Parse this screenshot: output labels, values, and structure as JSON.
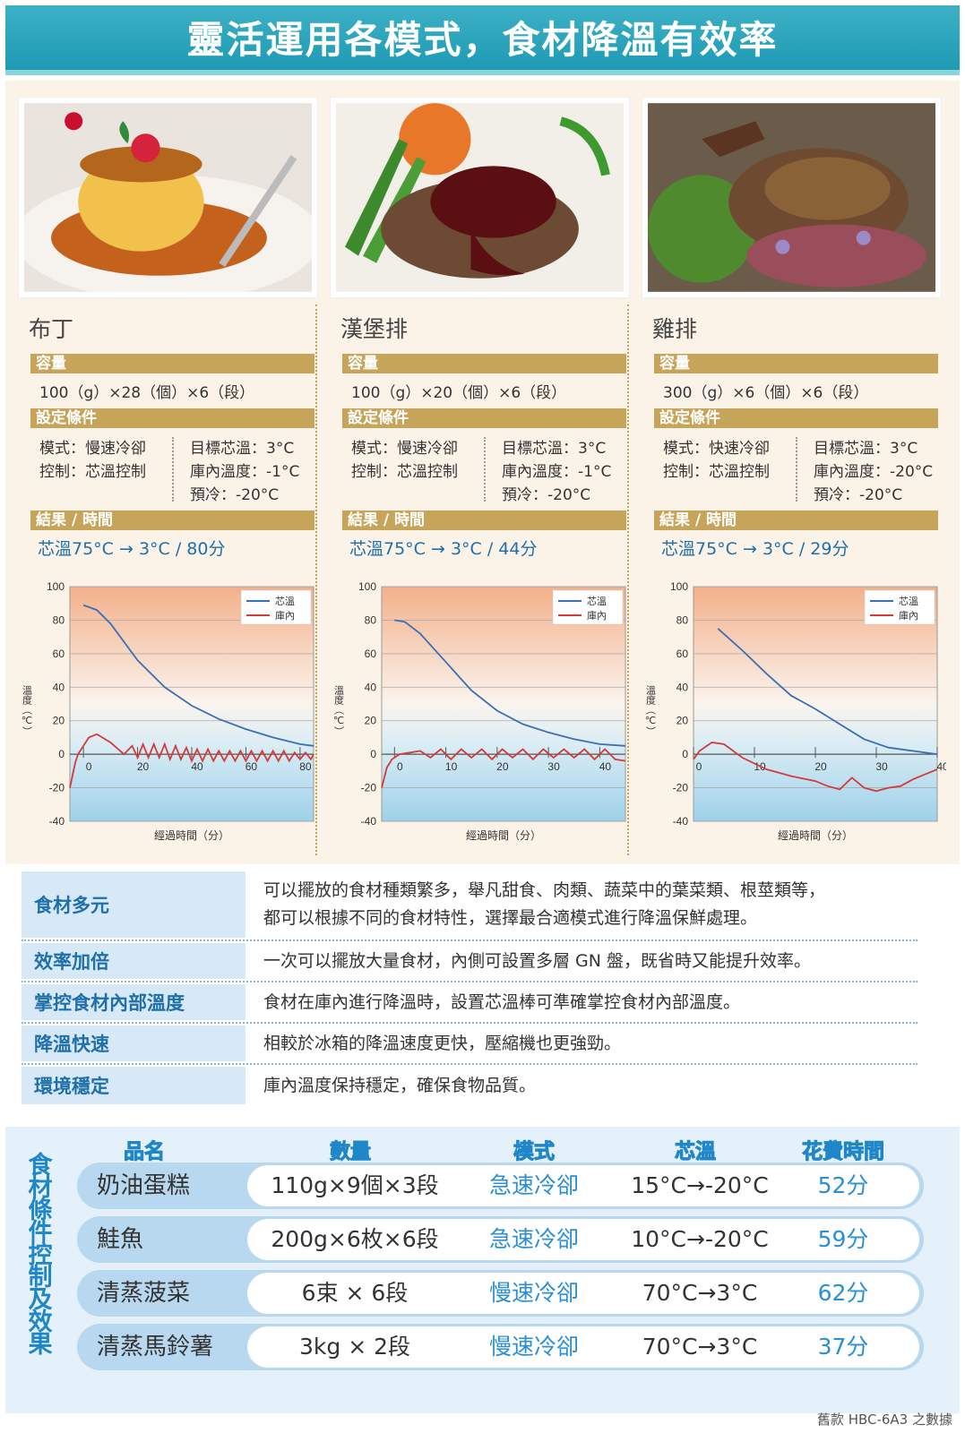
{
  "title": "靈活運用各模式，食材降溫有效率",
  "labels": {
    "capacity": "容量",
    "conditions": "設定條件",
    "result": "結果 / 時間",
    "y_axis": "溫度（℃）",
    "x_axis": "經過時間（分）",
    "legend_core": "芯溫",
    "legend_inside": "庫內"
  },
  "foods": [
    {
      "name": "布丁",
      "capacity": "100（g）×28（個）×6（段）",
      "mode": "模式：慢速冷卻",
      "control": "控制：芯溫控制",
      "target": "目標芯溫：3°C",
      "inside_temp": "庫內溫度：-1°C",
      "precool": "預冷：-20°C",
      "result": "芯溫75°C → 3°C / 80分"
    },
    {
      "name": "漢堡排",
      "capacity": "100（g）×20（個）×6（段）",
      "mode": "模式：慢速冷卻",
      "control": "控制：芯溫控制",
      "target": "目標芯溫：3°C",
      "inside_temp": "庫內溫度：-1°C",
      "precool": "預冷：-20°C",
      "result": "芯溫75°C → 3°C / 44分"
    },
    {
      "name": "雞排",
      "capacity": "300（g）×6（個）×6（段）",
      "mode": "模式：快速冷卻",
      "control": "控制：芯溫控制",
      "target": "目標芯溫：3°C",
      "inside_temp": "庫內溫度：-20°C",
      "precool": "預冷：-20°C",
      "result": "芯溫75°C → 3°C / 29分"
    }
  ],
  "chart_data": [
    {
      "type": "line",
      "xlabel": "經過時間（分）",
      "ylabel": "溫度（℃）",
      "ylim": [
        -40,
        100
      ],
      "xlim": [
        -5,
        85
      ],
      "x_ticks": [
        "0",
        "20",
        "40",
        "60",
        "80"
      ],
      "y_ticks": [
        "100",
        "80",
        "60",
        "40",
        "20",
        "0",
        "-20",
        "-40"
      ],
      "legend_position": "top-right",
      "series": [
        {
          "name": "芯溫",
          "color": "#3a6fb5",
          "x": [
            0,
            5,
            10,
            20,
            30,
            40,
            50,
            60,
            70,
            80,
            85
          ],
          "y": [
            89,
            86,
            78,
            56,
            40,
            29,
            21,
            15,
            10,
            6,
            5
          ]
        },
        {
          "name": "庫內",
          "color": "#d33b3b",
          "x": [
            -5,
            -3,
            -2,
            0,
            2,
            5,
            10,
            15,
            18,
            20,
            22,
            24,
            26,
            28,
            30,
            32,
            34,
            36,
            38,
            40,
            42,
            44,
            46,
            48,
            50,
            52,
            54,
            56,
            58,
            60,
            62,
            64,
            66,
            68,
            70,
            72,
            74,
            76,
            78,
            80,
            82,
            84,
            85
          ],
          "y": [
            -20,
            -5,
            0,
            5,
            10,
            12,
            7,
            0,
            5,
            -2,
            6,
            -2,
            6,
            -2,
            6,
            -3,
            5,
            -3,
            4,
            -4,
            3,
            -4,
            3,
            -4,
            2,
            -4,
            2,
            -4,
            2,
            -4,
            2,
            -4,
            2,
            -4,
            2,
            -4,
            2,
            -4,
            1,
            -3,
            1,
            -3,
            0
          ]
        }
      ]
    },
    {
      "type": "line",
      "xlabel": "經過時間（分）",
      "ylabel": "溫度（℃）",
      "ylim": [
        -40,
        100
      ],
      "xlim": [
        -2.5,
        45
      ],
      "x_ticks": [
        "0",
        "10",
        "20",
        "30",
        "40"
      ],
      "y_ticks": [
        "100",
        "80",
        "60",
        "40",
        "20",
        "0",
        "-20",
        "-40"
      ],
      "legend_position": "top-right",
      "series": [
        {
          "name": "芯溫",
          "color": "#3a6fb5",
          "x": [
            0,
            2,
            5,
            10,
            15,
            20,
            25,
            30,
            35,
            40,
            45
          ],
          "y": [
            80,
            79,
            72,
            55,
            38,
            26,
            18,
            13,
            9,
            6,
            5
          ]
        },
        {
          "name": "庫內",
          "color": "#d33b3b",
          "x": [
            -2.5,
            -1.5,
            -0.5,
            1,
            3,
            5,
            7,
            9,
            11,
            13,
            15,
            17,
            19,
            21,
            23,
            25,
            27,
            29,
            31,
            33,
            35,
            37,
            39,
            41,
            43,
            45
          ],
          "y": [
            -20,
            -8,
            -3,
            0,
            1,
            2,
            -2,
            3,
            -3,
            3,
            -2,
            3,
            -3,
            3,
            -2,
            3,
            -3,
            3,
            -2,
            3,
            -2,
            3,
            -3,
            3,
            -3,
            -4
          ]
        }
      ]
    },
    {
      "type": "line",
      "xlabel": "經過時間（分）",
      "ylabel": "溫度（℃）",
      "ylim": [
        -40,
        100
      ],
      "xlim": [
        0,
        40
      ],
      "x_ticks": [
        "0",
        "10",
        "20",
        "30",
        "40"
      ],
      "y_ticks": [
        "100",
        "80",
        "60",
        "40",
        "20",
        "0",
        "-20",
        "-40"
      ],
      "legend_position": "top-right",
      "series": [
        {
          "name": "芯溫",
          "color": "#3a6fb5",
          "x": [
            4,
            8,
            12,
            16,
            20,
            24,
            28,
            32,
            36,
            40
          ],
          "y": [
            75,
            62,
            48,
            35,
            27,
            18,
            9,
            4,
            2,
            0
          ]
        },
        {
          "name": "庫內",
          "color": "#d33b3b",
          "x": [
            0,
            1,
            3,
            5,
            8,
            12,
            16,
            20,
            22,
            24,
            26,
            28,
            30,
            32,
            34,
            36,
            38,
            40
          ],
          "y": [
            -3,
            2,
            7,
            6,
            -2,
            -9,
            -13,
            -16,
            -19,
            -21,
            -14,
            -20,
            -22,
            -20,
            -19,
            -15,
            -12,
            -9
          ]
        }
      ]
    }
  ],
  "features": [
    {
      "label": "食材多元",
      "desc": [
        "可以擺放的食材種類繁多，舉凡甜食、肉類、蔬菜中的葉菜類、根莖類等，",
        "都可以根據不同的食材特性，選擇最合適模式進行降溫保鮮處理。"
      ]
    },
    {
      "label": "效率加倍",
      "desc": [
        "一次可以擺放大量食材，內側可設置多層 GN 盤，既省時又能提升效率。"
      ]
    },
    {
      "label": "掌控食材內部溫度",
      "desc": [
        "食材在庫內進行降溫時，設置芯溫棒可準確掌控食材內部溫度。"
      ]
    },
    {
      "label": "降溫快速",
      "desc": [
        "相較於冰箱的降溫速度更快，壓縮機也更強勁。"
      ]
    },
    {
      "label": "環境穩定",
      "desc": [
        "庫內溫度保持穩定，確保食物品質。"
      ]
    }
  ],
  "table": {
    "side_title": "食材條件控制及效果",
    "headers": [
      "品名",
      "數量",
      "模式",
      "芯溫",
      "花費時間"
    ],
    "rows": [
      {
        "name": "奶油蛋糕",
        "qty": "110g×9個×3段",
        "mode": "急速冷卻",
        "temp": "15°C→-20°C",
        "time": "52分"
      },
      {
        "name": "鮭魚",
        "qty": "200g×6枚×6段",
        "mode": "急速冷卻",
        "temp": "10°C→-20°C",
        "time": "59分"
      },
      {
        "name": "清蒸菠菜",
        "qty": "6束 × 6段",
        "mode": "慢速冷卻",
        "temp": "70°C→3°C",
        "time": "62分"
      },
      {
        "name": "清蒸馬鈴薯",
        "qty": "3kg × 2段",
        "mode": "慢速冷卻",
        "temp": "70°C→3°C",
        "time": "37分"
      }
    ]
  },
  "footnote": "舊款 HBC-6A3 之數據"
}
